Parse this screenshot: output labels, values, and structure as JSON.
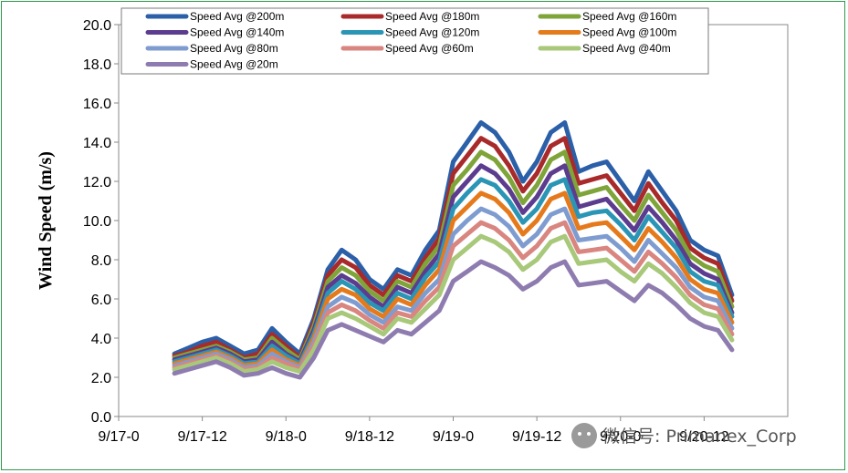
{
  "chart_data": {
    "type": "line",
    "title": "",
    "xlabel": "",
    "ylabel": "Wind Speed (m/s)",
    "ylim": [
      0,
      20
    ],
    "yticks": [
      "0.0",
      "2.0",
      "4.0",
      "6.0",
      "8.0",
      "10.0",
      "12.0",
      "14.0",
      "16.0",
      "18.0",
      "20.0"
    ],
    "xlim": [
      0,
      96
    ],
    "xtick_values": [
      0,
      12,
      24,
      36,
      48,
      60,
      72,
      84
    ],
    "xticks": [
      "9/17-0",
      "9/17-12",
      "9/18-0",
      "9/18-12",
      "9/19-0",
      "9/19-12",
      "9/20-0",
      "9/20-12"
    ],
    "grid": false,
    "legend_position": "top",
    "x_hours": [
      8,
      10,
      12,
      14,
      16,
      18,
      20,
      22,
      24,
      26,
      28,
      30,
      32,
      34,
      36,
      38,
      40,
      42,
      44,
      46,
      48,
      50,
      52,
      54,
      56,
      58,
      60,
      62,
      64,
      66,
      68,
      70,
      72,
      74,
      76,
      78,
      80,
      82,
      84,
      86,
      88
    ],
    "series": [
      {
        "name": "Speed Avg @200m",
        "color": "#2b5fa8",
        "values": [
          3.2,
          3.5,
          3.8,
          4.0,
          3.6,
          3.2,
          3.4,
          4.5,
          3.8,
          3.2,
          5.0,
          7.5,
          8.5,
          8.0,
          7.0,
          6.5,
          7.5,
          7.2,
          8.5,
          9.5,
          13.0,
          14.0,
          15.0,
          14.5,
          13.5,
          12.0,
          13.0,
          14.5,
          15.0,
          12.5,
          12.8,
          13.0,
          12.0,
          11.0,
          12.5,
          11.5,
          10.5,
          9.0,
          8.5,
          8.2,
          6.2
        ]
      },
      {
        "name": "Speed Avg @180m",
        "color": "#a82a2a",
        "values": [
          3.1,
          3.3,
          3.6,
          3.8,
          3.4,
          3.0,
          3.2,
          4.2,
          3.6,
          3.0,
          4.8,
          7.2,
          8.0,
          7.6,
          6.7,
          6.2,
          7.2,
          6.9,
          8.1,
          9.1,
          12.4,
          13.3,
          14.2,
          13.8,
          12.8,
          11.5,
          12.4,
          13.8,
          14.2,
          11.9,
          12.1,
          12.3,
          11.4,
          10.5,
          11.9,
          10.9,
          10.0,
          8.6,
          8.1,
          7.8,
          5.9
        ]
      },
      {
        "name": "Speed Avg @160m",
        "color": "#7ea43a",
        "values": [
          3.0,
          3.2,
          3.4,
          3.6,
          3.3,
          2.9,
          3.0,
          4.0,
          3.4,
          2.9,
          4.6,
          6.9,
          7.6,
          7.2,
          6.4,
          5.9,
          6.9,
          6.6,
          7.8,
          8.7,
          11.8,
          12.6,
          13.5,
          13.1,
          12.2,
          10.9,
          11.8,
          13.1,
          13.5,
          11.3,
          11.5,
          11.7,
          10.8,
          10.0,
          11.3,
          10.4,
          9.5,
          8.2,
          7.7,
          7.4,
          5.6
        ]
      },
      {
        "name": "Speed Avg @140m",
        "color": "#5c3c8e",
        "values": [
          2.9,
          3.1,
          3.3,
          3.5,
          3.2,
          2.8,
          2.9,
          3.8,
          3.2,
          2.8,
          4.4,
          6.6,
          7.2,
          6.8,
          6.1,
          5.6,
          6.6,
          6.3,
          7.4,
          8.3,
          11.2,
          12.0,
          12.8,
          12.4,
          11.6,
          10.4,
          11.2,
          12.4,
          12.8,
          10.7,
          10.9,
          11.1,
          10.3,
          9.5,
          10.7,
          9.9,
          9.0,
          7.8,
          7.3,
          7.0,
          5.3
        ]
      },
      {
        "name": "Speed Avg @120m",
        "color": "#2a95b5",
        "values": [
          2.8,
          3.0,
          3.2,
          3.4,
          3.1,
          2.7,
          2.8,
          3.6,
          3.1,
          2.7,
          4.2,
          6.3,
          6.9,
          6.5,
          5.8,
          5.4,
          6.3,
          6.0,
          7.1,
          7.9,
          10.6,
          11.4,
          12.1,
          11.8,
          11.0,
          9.9,
          10.6,
          11.8,
          12.1,
          10.2,
          10.4,
          10.5,
          9.8,
          9.0,
          10.2,
          9.4,
          8.6,
          7.4,
          6.9,
          6.7,
          5.1
        ]
      },
      {
        "name": "Speed Avg @100m",
        "color": "#e57a1c",
        "values": [
          2.7,
          2.9,
          3.1,
          3.3,
          3.0,
          2.6,
          2.7,
          3.4,
          2.9,
          2.6,
          4.0,
          6.0,
          6.5,
          6.2,
          5.5,
          5.1,
          6.0,
          5.7,
          6.7,
          7.5,
          10.0,
          10.7,
          11.4,
          11.1,
          10.4,
          9.3,
          10.0,
          11.1,
          11.4,
          9.6,
          9.8,
          9.9,
          9.2,
          8.5,
          9.6,
          8.9,
          8.1,
          7.0,
          6.5,
          6.3,
          4.8
        ]
      },
      {
        "name": "Speed Avg @80m",
        "color": "#7f9cd0",
        "values": [
          2.6,
          2.8,
          3.0,
          3.2,
          2.9,
          2.5,
          2.6,
          3.2,
          2.8,
          2.5,
          3.8,
          5.6,
          6.1,
          5.8,
          5.2,
          4.8,
          5.6,
          5.4,
          6.3,
          7.0,
          9.3,
          10.0,
          10.6,
          10.3,
          9.7,
          8.7,
          9.3,
          10.3,
          10.6,
          9.0,
          9.1,
          9.2,
          8.6,
          7.9,
          9.0,
          8.3,
          7.6,
          6.6,
          6.1,
          5.9,
          4.5
        ]
      },
      {
        "name": "Speed Avg @60m",
        "color": "#d98580",
        "values": [
          2.5,
          2.7,
          2.9,
          3.1,
          2.8,
          2.4,
          2.5,
          3.0,
          2.7,
          2.4,
          3.6,
          5.3,
          5.7,
          5.4,
          4.9,
          4.5,
          5.3,
          5.1,
          5.9,
          6.6,
          8.7,
          9.3,
          9.9,
          9.6,
          9.0,
          8.1,
          8.7,
          9.6,
          9.9,
          8.4,
          8.5,
          8.6,
          8.0,
          7.4,
          8.4,
          7.8,
          7.1,
          6.2,
          5.7,
          5.5,
          4.2
        ]
      },
      {
        "name": "Speed Avg @40m",
        "color": "#a8c87a",
        "values": [
          2.4,
          2.6,
          2.8,
          3.0,
          2.7,
          2.3,
          2.4,
          2.8,
          2.5,
          2.3,
          3.4,
          5.0,
          5.3,
          5.0,
          4.6,
          4.2,
          5.0,
          4.8,
          5.5,
          6.2,
          8.0,
          8.6,
          9.2,
          8.9,
          8.4,
          7.5,
          8.0,
          8.9,
          9.2,
          7.8,
          7.9,
          8.0,
          7.4,
          6.9,
          7.8,
          7.3,
          6.6,
          5.8,
          5.3,
          5.1,
          3.9
        ]
      },
      {
        "name": "Speed Avg @20m",
        "color": "#8e7cb0",
        "values": [
          2.2,
          2.4,
          2.6,
          2.8,
          2.5,
          2.1,
          2.2,
          2.5,
          2.2,
          2.0,
          3.0,
          4.4,
          4.7,
          4.4,
          4.1,
          3.8,
          4.4,
          4.2,
          4.8,
          5.4,
          6.9,
          7.4,
          7.9,
          7.6,
          7.2,
          6.5,
          6.9,
          7.6,
          7.9,
          6.7,
          6.8,
          6.9,
          6.4,
          5.9,
          6.7,
          6.3,
          5.7,
          5.0,
          4.6,
          4.4,
          3.4
        ]
      }
    ]
  },
  "watermark": {
    "text": "微信号: Primanex_Corp"
  }
}
